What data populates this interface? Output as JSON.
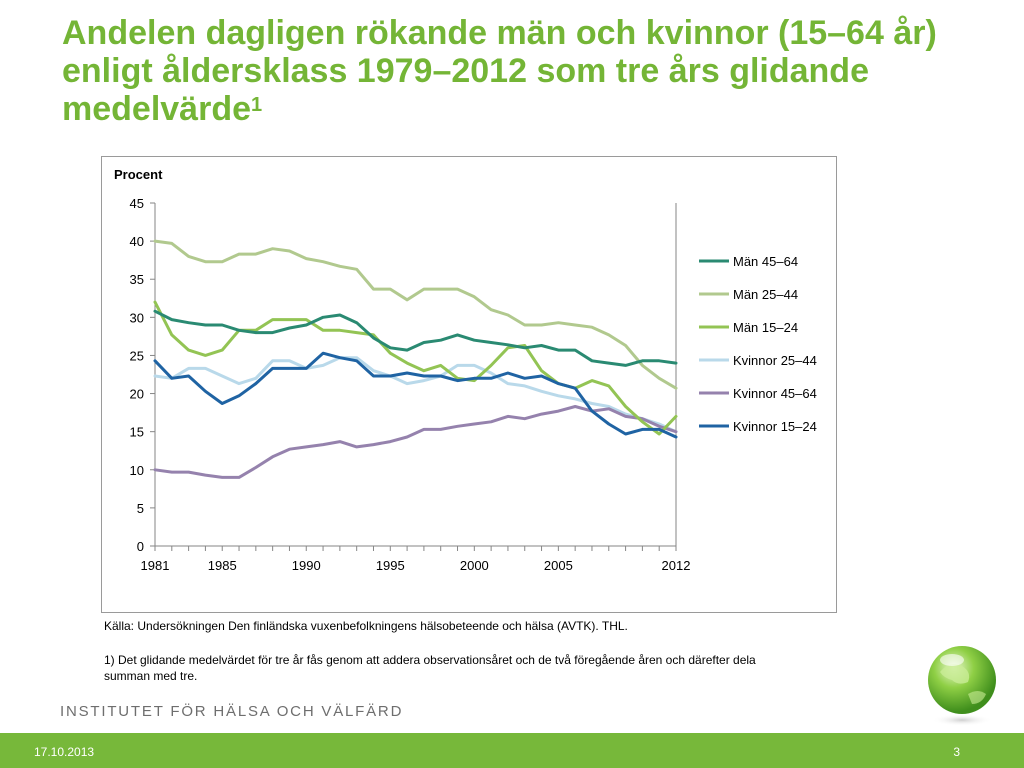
{
  "slide": {
    "title": "Andelen dagligen rökande män och kvinnor (15–64 år) enligt åldersklass 1979–2012 som tre års glidande medelvärde",
    "title_sup": "1",
    "source": "Källa: Undersökningen Den finländska vuxenbefolkningens hälsobeteende och hälsa (AVTK). THL.",
    "footnote": "1) Det glidande medelvärdet för tre år fås genom att addera observationsåret och de två föregående åren och därefter dela summan med tre.",
    "institute": "INSTITUTET FÖR HÄLSA OCH VÄLFÄRD",
    "date": "17.10.2013",
    "page": "3"
  },
  "chart_data": {
    "type": "line",
    "ylabel": "Procent",
    "ylim": [
      0,
      45
    ],
    "yticks": [
      0,
      5,
      10,
      15,
      20,
      25,
      30,
      35,
      40,
      45
    ],
    "xlim": [
      1981,
      2012
    ],
    "xtick_labels": [
      "1981",
      "1985",
      "1990",
      "1995",
      "2000",
      "2005",
      "2012"
    ],
    "grid": false,
    "legend_position": "right",
    "x": [
      1981,
      1982,
      1983,
      1984,
      1985,
      1986,
      1987,
      1988,
      1989,
      1990,
      1991,
      1992,
      1993,
      1994,
      1995,
      1996,
      1997,
      1998,
      1999,
      2000,
      2001,
      2002,
      2003,
      2004,
      2005,
      2006,
      2007,
      2008,
      2009,
      2010,
      2011,
      2012
    ],
    "series": [
      {
        "name": "Män 45–64",
        "color": "#2a8a72",
        "values": [
          30.8,
          29.7,
          29.3,
          29.0,
          29.0,
          28.3,
          28.0,
          28.0,
          28.6,
          29.0,
          30.0,
          30.3,
          29.3,
          27.3,
          26.0,
          25.7,
          26.7,
          27.0,
          27.7,
          27.0,
          26.7,
          26.4,
          26.0,
          26.3,
          25.7,
          25.7,
          24.3,
          24.0,
          23.7,
          24.3,
          24.3,
          24.0
        ]
      },
      {
        "name": "Män 25–44",
        "color": "#b1c98e",
        "values": [
          40.0,
          39.7,
          38.0,
          37.3,
          37.3,
          38.3,
          38.3,
          39.0,
          38.7,
          37.7,
          37.3,
          36.7,
          36.3,
          33.7,
          33.7,
          32.3,
          33.7,
          33.7,
          33.7,
          32.7,
          31.0,
          30.3,
          29.0,
          29.0,
          29.3,
          29.0,
          28.7,
          27.7,
          26.3,
          23.7,
          22.0,
          20.7
        ]
      },
      {
        "name": "Män 15–24",
        "color": "#93c454",
        "values": [
          32.0,
          27.7,
          25.7,
          25.0,
          25.7,
          28.3,
          28.3,
          29.7,
          29.7,
          29.7,
          28.3,
          28.3,
          28.0,
          27.7,
          25.3,
          24.0,
          23.0,
          23.7,
          22.0,
          21.7,
          23.7,
          26.0,
          26.3,
          23.0,
          21.3,
          20.7,
          21.7,
          21.0,
          18.3,
          16.3,
          14.7,
          17.0
        ]
      },
      {
        "name": "Kvinnor 25–44",
        "color": "#b9d9ea",
        "values": [
          22.3,
          22.0,
          23.3,
          23.3,
          22.3,
          21.3,
          22.0,
          24.3,
          24.3,
          23.3,
          23.7,
          24.7,
          24.7,
          23.0,
          22.3,
          21.3,
          21.7,
          22.3,
          23.7,
          23.7,
          22.7,
          21.3,
          21.0,
          20.3,
          19.7,
          19.3,
          18.7,
          18.3,
          17.3,
          16.7,
          16.0,
          15.0
        ]
      },
      {
        "name": "Kvinnor 45–64",
        "color": "#9582ad",
        "values": [
          10.0,
          9.7,
          9.7,
          9.3,
          9.0,
          9.0,
          10.3,
          11.7,
          12.7,
          13.0,
          13.3,
          13.7,
          13.0,
          13.3,
          13.7,
          14.3,
          15.3,
          15.3,
          15.7,
          16.0,
          16.3,
          17.0,
          16.7,
          17.3,
          17.7,
          18.3,
          17.7,
          18.0,
          17.0,
          16.7,
          15.7,
          15.0
        ]
      },
      {
        "name": "Kvinnor 15–24",
        "color": "#1f63a3",
        "values": [
          24.3,
          22.0,
          22.3,
          20.3,
          18.7,
          19.7,
          21.3,
          23.3,
          23.3,
          23.3,
          25.3,
          24.7,
          24.3,
          22.3,
          22.3,
          22.7,
          22.3,
          22.3,
          21.7,
          22.0,
          22.0,
          22.7,
          22.0,
          22.3,
          21.3,
          20.7,
          17.7,
          16.0,
          14.7,
          15.3,
          15.3,
          14.3
        ]
      }
    ]
  }
}
